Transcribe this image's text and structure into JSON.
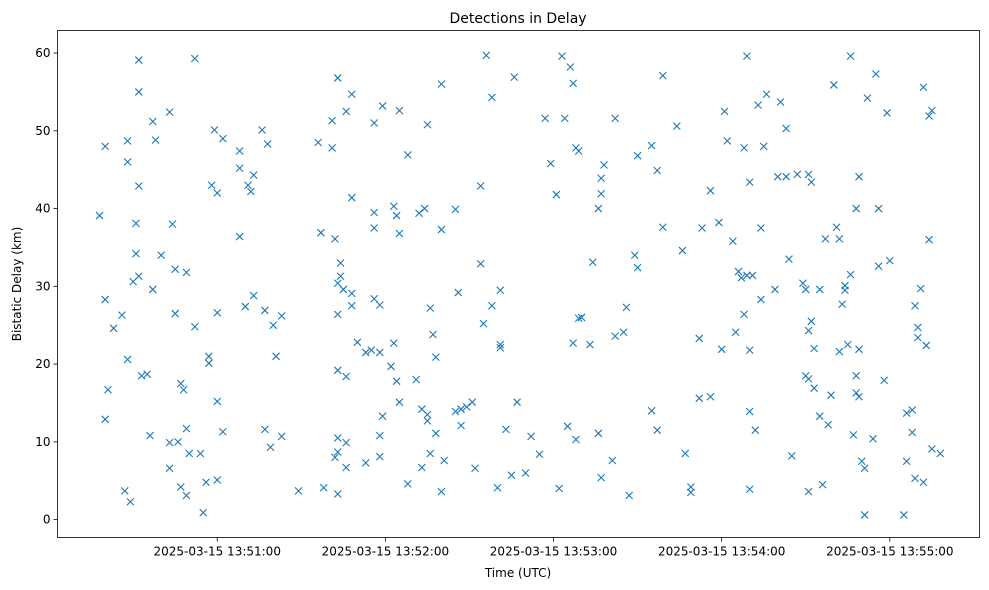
{
  "chart_data": {
    "type": "scatter",
    "title": "Detections in Delay",
    "xlabel": "Time (UTC)",
    "ylabel": "Bistatic Delay (km)",
    "x_unit": "seconds after 2025-03-15 13:50:00",
    "xlim": [
      3,
      332
    ],
    "ylim": [
      -2.3,
      62.9
    ],
    "grid": false,
    "marker": "x",
    "color": "#1f77b4",
    "x_ticks": [
      {
        "value": 60,
        "label": "2025-03-15 13:51:00"
      },
      {
        "value": 120,
        "label": "2025-03-15 13:52:00"
      },
      {
        "value": 180,
        "label": "2025-03-15 13:53:00"
      },
      {
        "value": 240,
        "label": "2025-03-15 13:54:00"
      },
      {
        "value": 300,
        "label": "2025-03-15 13:55:00"
      }
    ],
    "y_ticks": [
      {
        "value": 0,
        "label": "0"
      },
      {
        "value": 10,
        "label": "10"
      },
      {
        "value": 20,
        "label": "20"
      },
      {
        "value": 30,
        "label": "30"
      },
      {
        "value": 40,
        "label": "40"
      },
      {
        "value": 50,
        "label": "50"
      },
      {
        "value": 60,
        "label": "60"
      }
    ],
    "points": [
      [
        18,
        39.1
      ],
      [
        20,
        48
      ],
      [
        20,
        28.3
      ],
      [
        20,
        12.9
      ],
      [
        21,
        16.7
      ],
      [
        23,
        24.6
      ],
      [
        26,
        26.3
      ],
      [
        27,
        3.7
      ],
      [
        28,
        48.7
      ],
      [
        28,
        46
      ],
      [
        28,
        20.6
      ],
      [
        29,
        2.3
      ],
      [
        30,
        30.6
      ],
      [
        31,
        38.1
      ],
      [
        31,
        34.2
      ],
      [
        32,
        59.1
      ],
      [
        32,
        55
      ],
      [
        32,
        42.9
      ],
      [
        32,
        31.3
      ],
      [
        33,
        18.5
      ],
      [
        35,
        18.7
      ],
      [
        36,
        10.8
      ],
      [
        37,
        51.2
      ],
      [
        37,
        29.6
      ],
      [
        38,
        48.8
      ],
      [
        40,
        34
      ],
      [
        43,
        52.4
      ],
      [
        43,
        9.9
      ],
      [
        43,
        6.6
      ],
      [
        44,
        38
      ],
      [
        45,
        32.2
      ],
      [
        45,
        26.5
      ],
      [
        46,
        10
      ],
      [
        47,
        17.5
      ],
      [
        47,
        4.2
      ],
      [
        48,
        16.7
      ],
      [
        49,
        31.8
      ],
      [
        49,
        11.7
      ],
      [
        49,
        3.1
      ],
      [
        50,
        8.5
      ],
      [
        52,
        59.3
      ],
      [
        52,
        24.8
      ],
      [
        54,
        8.5
      ],
      [
        55,
        0.9
      ],
      [
        56,
        4.8
      ],
      [
        57,
        21
      ],
      [
        57,
        20.1
      ],
      [
        58,
        43
      ],
      [
        59,
        50.1
      ],
      [
        60,
        42
      ],
      [
        60,
        26.6
      ],
      [
        60,
        15.2
      ],
      [
        60,
        5.1
      ],
      [
        62,
        49
      ],
      [
        62,
        11.3
      ],
      [
        68,
        47.4
      ],
      [
        68,
        45.2
      ],
      [
        68,
        36.4
      ],
      [
        70,
        27.4
      ],
      [
        71,
        43
      ],
      [
        72,
        42.2
      ],
      [
        73,
        44.3
      ],
      [
        73,
        28.8
      ],
      [
        76,
        50.1
      ],
      [
        77,
        26.9
      ],
      [
        77,
        11.6
      ],
      [
        78,
        48.3
      ],
      [
        79,
        9.3
      ],
      [
        80,
        25
      ],
      [
        81,
        21
      ],
      [
        83,
        26.2
      ],
      [
        83,
        10.7
      ],
      [
        89,
        3.7
      ],
      [
        96,
        48.5
      ],
      [
        97,
        36.9
      ],
      [
        98,
        4.1
      ],
      [
        101,
        51.3
      ],
      [
        101,
        47.8
      ],
      [
        102,
        36.1
      ],
      [
        102,
        8
      ],
      [
        103,
        56.8
      ],
      [
        103,
        30.4
      ],
      [
        103,
        26.4
      ],
      [
        103,
        19.2
      ],
      [
        103,
        10.5
      ],
      [
        103,
        8.7
      ],
      [
        103,
        3.3
      ],
      [
        104,
        31.3
      ],
      [
        104,
        33
      ],
      [
        105,
        29.6
      ],
      [
        106,
        52.5
      ],
      [
        106,
        18.4
      ],
      [
        106,
        9.9
      ],
      [
        106,
        6.7
      ],
      [
        108,
        29.1
      ],
      [
        108,
        54.7
      ],
      [
        108,
        27.5
      ],
      [
        108,
        41.4
      ],
      [
        110,
        22.8
      ],
      [
        113,
        21.5
      ],
      [
        113,
        7.3
      ],
      [
        115,
        21.8
      ],
      [
        116,
        51
      ],
      [
        116,
        39.5
      ],
      [
        116,
        37.5
      ],
      [
        116,
        28.4
      ],
      [
        118,
        21.5
      ],
      [
        118,
        10.8
      ],
      [
        118,
        27.6
      ],
      [
        118,
        8.1
      ],
      [
        119,
        13.3
      ],
      [
        119,
        53.2
      ],
      [
        122,
        19.7
      ],
      [
        123,
        40.3
      ],
      [
        123,
        22.7
      ],
      [
        124,
        39.1
      ],
      [
        124,
        17.8
      ],
      [
        125,
        15.1
      ],
      [
        125,
        52.6
      ],
      [
        125,
        36.8
      ],
      [
        128,
        46.9
      ],
      [
        128,
        4.6
      ],
      [
        131,
        18
      ],
      [
        132,
        39.4
      ],
      [
        133,
        14.2
      ],
      [
        133,
        6.7
      ],
      [
        134,
        40
      ],
      [
        135,
        50.8
      ],
      [
        135,
        12.7
      ],
      [
        135,
        13.5
      ],
      [
        136,
        8.5
      ],
      [
        136,
        27.2
      ],
      [
        137,
        23.8
      ],
      [
        138,
        11.1
      ],
      [
        138,
        20.9
      ],
      [
        140,
        37.3
      ],
      [
        140,
        3.6
      ],
      [
        140,
        56
      ],
      [
        141,
        7.6
      ],
      [
        145,
        39.9
      ],
      [
        145,
        13.9
      ],
      [
        146,
        29.2
      ],
      [
        147,
        14.2
      ],
      [
        147,
        12.1
      ],
      [
        149,
        14.5
      ],
      [
        151,
        15.1
      ],
      [
        152,
        6.6
      ],
      [
        154,
        42.9
      ],
      [
        154,
        32.9
      ],
      [
        155,
        25.2
      ],
      [
        156,
        59.7
      ],
      [
        158,
        54.3
      ],
      [
        158,
        27.5
      ],
      [
        160,
        4.1
      ],
      [
        161,
        29.5
      ],
      [
        161,
        22.5
      ],
      [
        161,
        22.1
      ],
      [
        163,
        11.6
      ],
      [
        165,
        5.7
      ],
      [
        166,
        56.9
      ],
      [
        167,
        15.1
      ],
      [
        170,
        6
      ],
      [
        172,
        10.7
      ],
      [
        175,
        8.4
      ],
      [
        177,
        51.6
      ],
      [
        179,
        45.8
      ],
      [
        181,
        41.8
      ],
      [
        182,
        4
      ],
      [
        183,
        59.6
      ],
      [
        184,
        51.6
      ],
      [
        185,
        12
      ],
      [
        186,
        58.2
      ],
      [
        187,
        56.1
      ],
      [
        187,
        22.7
      ],
      [
        188,
        10.3
      ],
      [
        188,
        47.8
      ],
      [
        189,
        47.4
      ],
      [
        189,
        25.9
      ],
      [
        190,
        26
      ],
      [
        193,
        22.5
      ],
      [
        194,
        33.1
      ],
      [
        196,
        11.1
      ],
      [
        196,
        40
      ],
      [
        197,
        41.9
      ],
      [
        197,
        43.9
      ],
      [
        197,
        5.4
      ],
      [
        198,
        45.6
      ],
      [
        201,
        7.6
      ],
      [
        202,
        23.6
      ],
      [
        202,
        51.6
      ],
      [
        205,
        24.1
      ],
      [
        206,
        27.3
      ],
      [
        207,
        3.1
      ],
      [
        209,
        34
      ],
      [
        210,
        46.8
      ],
      [
        210,
        32.4
      ],
      [
        215,
        48.1
      ],
      [
        215,
        14
      ],
      [
        217,
        11.5
      ],
      [
        217,
        44.9
      ],
      [
        219,
        57.1
      ],
      [
        219,
        37.6
      ],
      [
        224,
        50.6
      ],
      [
        226,
        34.6
      ],
      [
        227,
        8.5
      ],
      [
        229,
        4.2
      ],
      [
        229,
        3.5
      ],
      [
        232,
        15.6
      ],
      [
        232,
        23.3
      ],
      [
        233,
        37.5
      ],
      [
        236,
        42.3
      ],
      [
        236,
        15.8
      ],
      [
        239,
        38.2
      ],
      [
        240,
        21.9
      ],
      [
        241,
        52.5
      ],
      [
        242,
        48.7
      ],
      [
        244,
        35.8
      ],
      [
        245,
        24.1
      ],
      [
        246,
        31.9
      ],
      [
        247,
        31.1
      ],
      [
        248,
        26.4
      ],
      [
        248,
        47.8
      ],
      [
        249,
        31.4
      ],
      [
        249,
        59.6
      ],
      [
        250,
        13.9
      ],
      [
        250,
        43.4
      ],
      [
        250,
        21.8
      ],
      [
        250,
        3.9
      ],
      [
        251,
        31.4
      ],
      [
        252,
        11.5
      ],
      [
        253,
        53.3
      ],
      [
        254,
        37.5
      ],
      [
        254,
        28.3
      ],
      [
        255,
        48
      ],
      [
        256,
        54.7
      ],
      [
        259,
        29.6
      ],
      [
        260,
        44.1
      ],
      [
        261,
        53.7
      ],
      [
        263,
        50.3
      ],
      [
        263,
        44.1
      ],
      [
        264,
        33.5
      ],
      [
        265,
        8.2
      ],
      [
        267,
        44.4
      ],
      [
        269,
        30.4
      ],
      [
        270,
        29.6
      ],
      [
        270,
        18.5
      ],
      [
        271,
        18.1
      ],
      [
        271,
        3.6
      ],
      [
        271,
        44.4
      ],
      [
        271,
        24.3
      ],
      [
        272,
        43.4
      ],
      [
        272,
        25.5
      ],
      [
        273,
        16.9
      ],
      [
        273,
        22
      ],
      [
        275,
        13.3
      ],
      [
        275,
        29.6
      ],
      [
        276,
        4.5
      ],
      [
        277,
        36.1
      ],
      [
        278,
        12.2
      ],
      [
        279,
        16
      ],
      [
        280,
        55.9
      ],
      [
        281,
        37.6
      ],
      [
        282,
        36.1
      ],
      [
        282,
        21.6
      ],
      [
        283,
        27.7
      ],
      [
        284,
        29.5
      ],
      [
        284,
        30.1
      ],
      [
        285,
        22.5
      ],
      [
        286,
        31.5
      ],
      [
        286,
        59.6
      ],
      [
        287,
        10.9
      ],
      [
        288,
        18.5
      ],
      [
        288,
        40
      ],
      [
        288,
        16.3
      ],
      [
        289,
        44.1
      ],
      [
        289,
        21.9
      ],
      [
        289,
        15.8
      ],
      [
        290,
        7.5
      ],
      [
        291,
        0.6
      ],
      [
        291,
        6.6
      ],
      [
        292,
        54.2
      ],
      [
        294,
        10.4
      ],
      [
        295,
        57.3
      ],
      [
        296,
        40
      ],
      [
        296,
        32.6
      ],
      [
        298,
        17.9
      ],
      [
        299,
        52.3
      ],
      [
        300,
        33.3
      ],
      [
        305,
        0.6
      ],
      [
        306,
        7.5
      ],
      [
        306,
        13.7
      ],
      [
        308,
        14.1
      ],
      [
        308,
        11.2
      ],
      [
        309,
        27.5
      ],
      [
        309,
        5.3
      ],
      [
        310,
        24.7
      ],
      [
        310,
        23.4
      ],
      [
        311,
        29.7
      ],
      [
        312,
        55.6
      ],
      [
        312,
        4.8
      ],
      [
        313,
        22.4
      ],
      [
        314,
        51.9
      ],
      [
        314,
        36
      ],
      [
        315,
        52.6
      ],
      [
        315,
        9.1
      ],
      [
        318,
        8.5
      ]
    ]
  }
}
